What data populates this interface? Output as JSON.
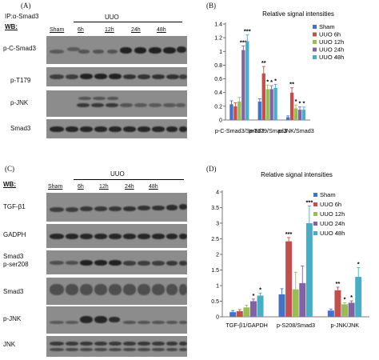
{
  "panelA": {
    "letter": "(A)",
    "ip_label": "IP:α-Smad3",
    "wb_label": "WB:",
    "group_header": "UUO",
    "lanes": [
      "Sham",
      "6h",
      "12h",
      "24h",
      "48h"
    ],
    "rows": [
      "p-C-Smad3",
      "p-T179",
      "p-JNK",
      "Smad3"
    ]
  },
  "panelC": {
    "letter": "(C)",
    "wb_label": "WB:",
    "group_header": "UUO",
    "lanes": [
      "Sham",
      "6h",
      "12h",
      "24h",
      "48h"
    ],
    "rows": [
      "TGF-β1",
      "GADPH",
      "Smad3\np-ser208",
      "Smad3",
      "p-JNK",
      "JNK"
    ]
  },
  "chart_data": [
    {
      "letter": "(B)",
      "type": "bar",
      "title": "Relative signal intensities",
      "categories": [
        "p-C-Smad3/Smad3",
        "p-T179/Smad3",
        "p-JNK/Smad3"
      ],
      "ylim": [
        0,
        1.4
      ],
      "yticks": [
        0,
        0.2,
        0.4,
        0.6,
        0.8,
        1,
        1.2,
        1.4
      ],
      "ytick_labels": [
        "0",
        "0.2",
        "0.4",
        "0.6",
        "0.8",
        "1",
        "1.2",
        "1.4"
      ],
      "legend_position": "top-right",
      "series": [
        {
          "name": "Sham",
          "color": "#4472c4",
          "values": [
            0.23,
            0.27,
            0.04
          ],
          "errors": [
            0.05,
            0.04,
            0.02
          ],
          "marks": [
            "",
            "",
            ""
          ]
        },
        {
          "name": "UUO 6h",
          "color": "#c0504d",
          "values": [
            0.2,
            0.68,
            0.4
          ],
          "errors": [
            0.05,
            0.1,
            0.07
          ],
          "marks": [
            "",
            "**",
            "**"
          ]
        },
        {
          "name": "UUO 12h",
          "color": "#9bbb59",
          "values": [
            0.27,
            0.45,
            0.17
          ],
          "errors": [
            0.06,
            0.06,
            0.05
          ],
          "marks": [
            "",
            "*",
            "*"
          ]
        },
        {
          "name": "UUO 24h",
          "color": "#8064a2",
          "values": [
            1.02,
            0.45,
            0.15
          ],
          "errors": [
            0.06,
            0.05,
            0.04
          ],
          "marks": [
            "***",
            "*",
            "*"
          ]
        },
        {
          "name": "UUO 48h",
          "color": "#4bacc6",
          "values": [
            1.15,
            0.47,
            0.15
          ],
          "errors": [
            0.09,
            0.05,
            0.04
          ],
          "marks": [
            "***",
            "*",
            "*"
          ]
        }
      ]
    },
    {
      "letter": "(D)",
      "type": "bar",
      "title": "Relative signal intensities",
      "categories": [
        "TGF-β1/GAPDH",
        "p-S208/Smad3",
        "p-JNK/JNK"
      ],
      "ylim": [
        0,
        4
      ],
      "yticks": [
        0,
        0.5,
        1,
        1.5,
        2,
        2.5,
        3,
        3.5,
        4
      ],
      "ytick_labels": [
        "0",
        "0.5",
        "1",
        "1.5",
        "2",
        "2.5",
        "3",
        "3.5",
        "4"
      ],
      "legend_position": "top-right",
      "series": [
        {
          "name": "Sham",
          "color": "#4472c4",
          "values": [
            0.15,
            0.72,
            0.2
          ],
          "errors": [
            0.05,
            0.18,
            0.05
          ],
          "marks": [
            "",
            "",
            ""
          ]
        },
        {
          "name": "UUO 6h",
          "color": "#c0504d",
          "values": [
            0.18,
            2.42,
            0.85
          ],
          "errors": [
            0.05,
            0.12,
            0.1
          ],
          "marks": [
            "",
            "***",
            "**"
          ]
        },
        {
          "name": "UUO 12h",
          "color": "#9bbb59",
          "values": [
            0.3,
            0.88,
            0.4
          ],
          "errors": [
            0.07,
            0.55,
            0.05
          ],
          "marks": [
            "",
            "",
            "*"
          ]
        },
        {
          "name": "UUO 24h",
          "color": "#8064a2",
          "values": [
            0.5,
            1.08,
            0.45
          ],
          "errors": [
            0.07,
            0.55,
            0.06
          ],
          "marks": [
            "*",
            "",
            "*"
          ]
        },
        {
          "name": "UUO 48h",
          "color": "#4bacc6",
          "values": [
            0.68,
            3.0,
            1.28
          ],
          "errors": [
            0.08,
            0.55,
            0.3
          ],
          "marks": [
            "*",
            "***",
            "*"
          ]
        }
      ]
    }
  ]
}
